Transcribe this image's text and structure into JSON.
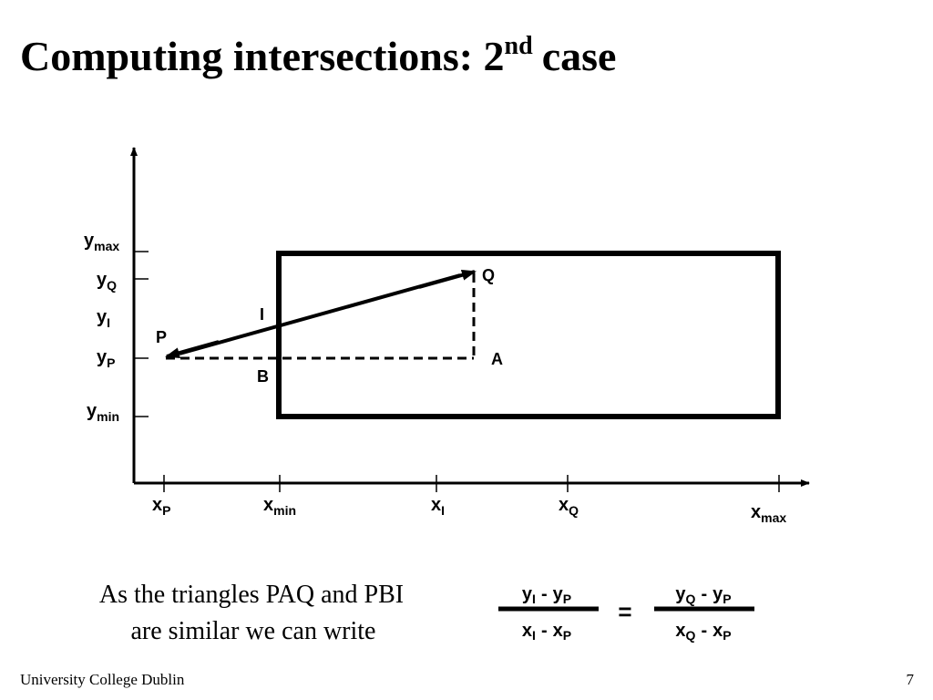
{
  "header": {
    "title": "Computing intersections: 2",
    "title_superscript": "nd",
    "title_end": "case"
  },
  "diagram": {
    "y_labels": [
      {
        "main": "y",
        "sub": "max"
      },
      {
        "main": "y",
        "sub": "Q"
      },
      {
        "main": "y",
        "sub": "I"
      },
      {
        "main": "y",
        "sub": "P"
      },
      {
        "main": "y",
        "sub": "min"
      }
    ],
    "x_labels": [
      {
        "main": "x",
        "sub": "P"
      },
      {
        "main": "x",
        "sub": "min"
      },
      {
        "main": "x",
        "sub": "I"
      },
      {
        "main": "x",
        "sub": "Q"
      },
      {
        "main": "x",
        "sub": "max"
      }
    ],
    "points": [
      "P",
      "Q",
      "I",
      "A",
      "B"
    ]
  },
  "caption": [
    "As the triangles PAQ and PBI",
    "are similar we can write"
  ],
  "equation": {
    "left": {
      "numerator": [
        {
          "main": "y",
          "sub": "I"
        },
        {
          "main": "y",
          "sub": "P"
        }
      ],
      "denominator": [
        {
          "main": "x",
          "sub": "I"
        },
        {
          "main": "x",
          "sub": "P"
        }
      ]
    },
    "right": {
      "numerator": [
        {
          "main": "y",
          "sub": "Q"
        },
        {
          "main": "y",
          "sub": "P"
        }
      ],
      "denominator": [
        {
          "main": "x",
          "sub": "Q"
        },
        {
          "main": "x",
          "sub": "P"
        }
      ]
    },
    "operator": "-",
    "equals": "="
  },
  "footer": {
    "institution": "University College Dublin",
    "page": "7"
  }
}
